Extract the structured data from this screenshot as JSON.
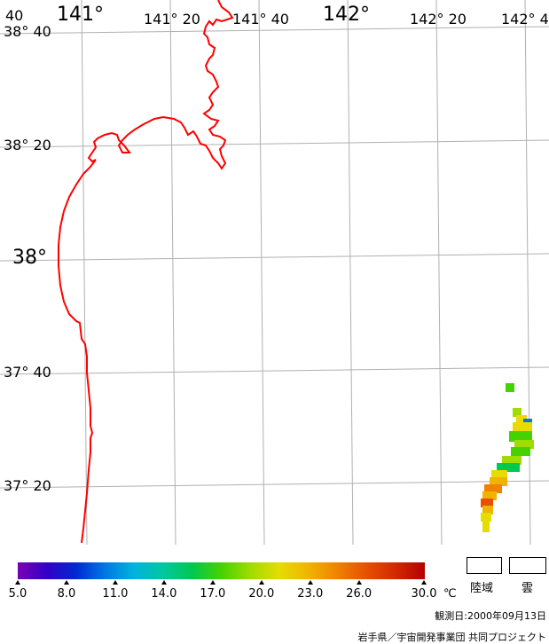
{
  "map": {
    "lat_labels": [
      {
        "text": "38° 40",
        "lat": 38.6667
      },
      {
        "text": "38° 20",
        "lat": 38.3333
      },
      {
        "text": "38°",
        "lat": 38.0
      },
      {
        "text": "37° 40",
        "lat": 37.6667
      },
      {
        "text": "37° 20",
        "lat": 37.3333
      }
    ],
    "lon_labels": [
      {
        "text": "141°",
        "lon": 141.0
      },
      {
        "text": "141° 20",
        "lon": 141.3333
      },
      {
        "text": "141° 40",
        "lon": 141.6667
      },
      {
        "text": "142°",
        "lon": 142.0
      },
      {
        "text": "142° 20",
        "lon": 142.3333
      },
      {
        "text": "142° 4",
        "lon": 142.6667
      }
    ],
    "corner_text": "40",
    "coast_color": "#ff0000",
    "grid_color": "#b0b0b0"
  },
  "colorbar": {
    "ticks": [
      "5.0",
      "8.0",
      "11.0",
      "14.0",
      "17.0",
      "20.0",
      "23.0",
      "26.0",
      "30.0"
    ],
    "unit": "℃",
    "colors": [
      "#7a00b4",
      "#3200c8",
      "#0028d2",
      "#0078e6",
      "#00b4dc",
      "#00c8a0",
      "#00c850",
      "#46d200",
      "#a0dc00",
      "#e6dc00",
      "#f0b400",
      "#f08200",
      "#e65000",
      "#d22800",
      "#b40000"
    ]
  },
  "legend": {
    "land_label": "陸域",
    "cloud_label": "雲"
  },
  "footer": {
    "date": "観測日:2000年09月13日",
    "credit": "岩手県／宇宙開発事業団 共同プロジェクト"
  }
}
